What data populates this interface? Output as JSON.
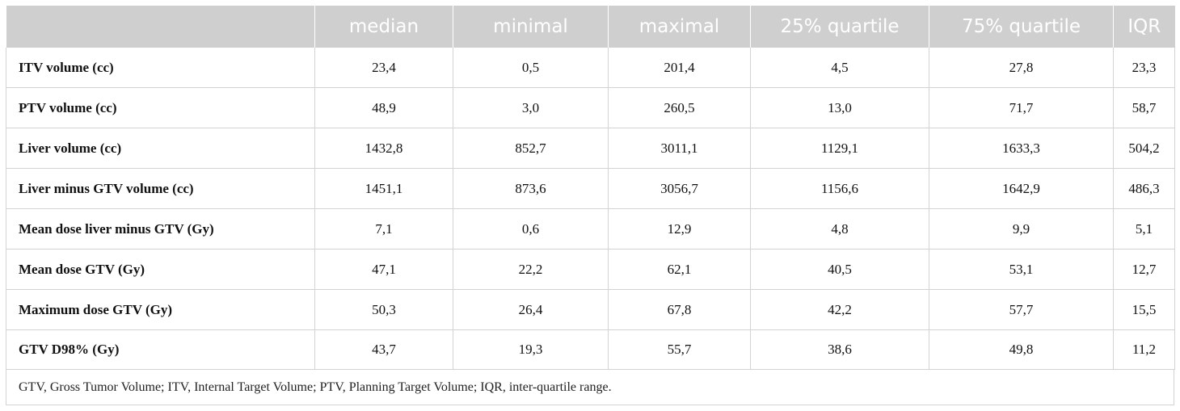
{
  "table": {
    "columns": [
      "",
      "median",
      "minimal",
      "maximal",
      "25% quartile",
      "75% quartile",
      "IQR"
    ],
    "rows": [
      {
        "label": "ITV volume (cc)",
        "values": [
          "23,4",
          "0,5",
          "201,4",
          "4,5",
          "27,8",
          "23,3"
        ]
      },
      {
        "label": "PTV volume (cc)",
        "values": [
          "48,9",
          "3,0",
          "260,5",
          "13,0",
          "71,7",
          "58,7"
        ]
      },
      {
        "label": "Liver volume (cc)",
        "values": [
          "1432,8",
          "852,7",
          "3011,1",
          "1129,1",
          "1633,3",
          "504,2"
        ]
      },
      {
        "label": "Liver minus GTV volume (cc)",
        "values": [
          "1451,1",
          "873,6",
          "3056,7",
          "1156,6",
          "1642,9",
          "486,3"
        ]
      },
      {
        "label": "Mean dose liver minus GTV (Gy)",
        "values": [
          "7,1",
          "0,6",
          "12,9",
          "4,8",
          "9,9",
          "5,1"
        ]
      },
      {
        "label": "Mean dose GTV (Gy)",
        "values": [
          "47,1",
          "22,2",
          "62,1",
          "40,5",
          "53,1",
          "12,7"
        ]
      },
      {
        "label": "Maximum dose GTV (Gy)",
        "values": [
          "50,3",
          "26,4",
          "67,8",
          "42,2",
          "57,7",
          "15,5"
        ]
      },
      {
        "label": "GTV D98% (Gy)",
        "values": [
          "43,7",
          "19,3",
          "55,7",
          "38,6",
          "49,8",
          "11,2"
        ]
      }
    ],
    "footnote": "GTV, Gross Tumor Volume; ITV, Internal Target Volume; PTV, Planning Target Volume; IQR, inter-quartile range."
  },
  "colors": {
    "header_bg": "#cfcfcf",
    "header_text": "#ffffff",
    "grid": "#d3d3d3"
  }
}
